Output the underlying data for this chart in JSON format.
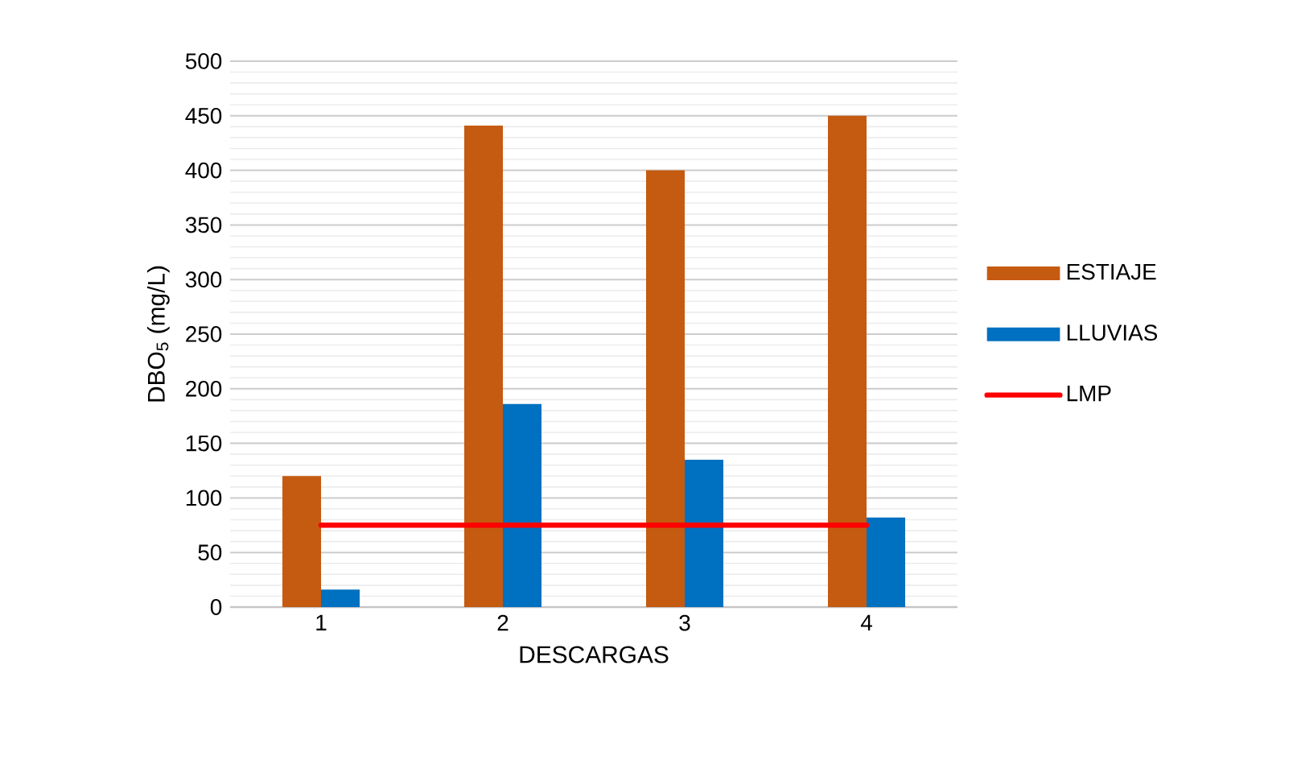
{
  "chart_data": {
    "type": "bar",
    "xlabel": "DESCARGAS",
    "ylabel": "DBO$_{5}$ (mg/L)",
    "categories": [
      "1",
      "2",
      "3",
      "4"
    ],
    "series": [
      {
        "name": "ESTIAJE",
        "color": "#c55a11",
        "values": [
          120,
          441,
          400,
          450
        ]
      },
      {
        "name": "LLUVIAS",
        "color": "#0070c0",
        "values": [
          16,
          186,
          135,
          82
        ]
      },
      {
        "name": "LMP",
        "type": "line",
        "color": "#ff0000",
        "values": [
          75,
          75,
          75,
          75
        ]
      }
    ],
    "ylim": [
      0,
      500
    ],
    "yticks": [
      0,
      50,
      100,
      150,
      200,
      250,
      300,
      350,
      400,
      450,
      500
    ],
    "grid": "y",
    "legend": "right",
    "marker": "none"
  }
}
